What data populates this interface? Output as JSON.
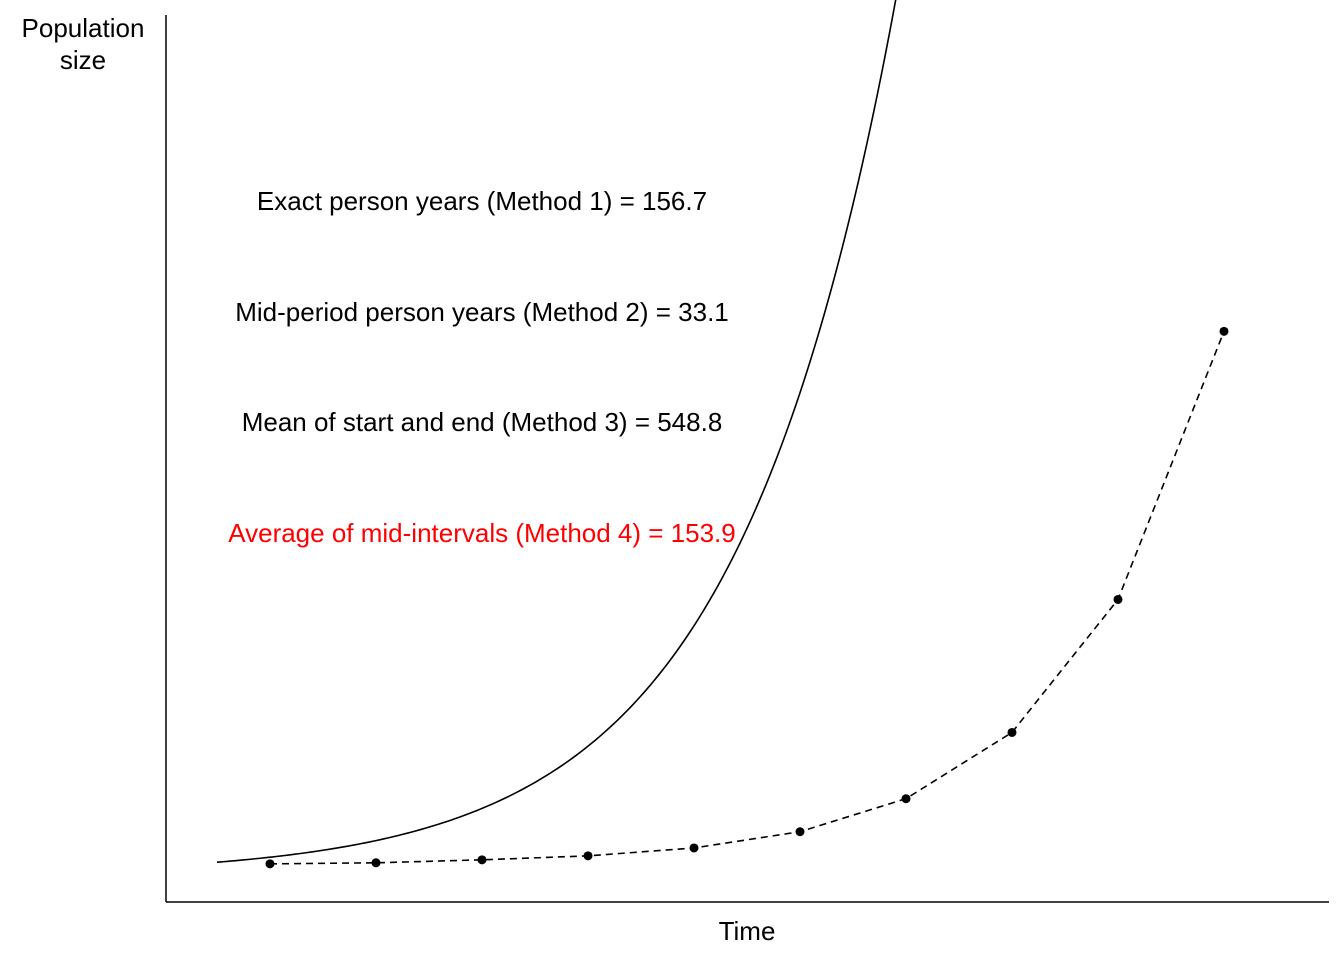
{
  "chart_data": {
    "type": "line",
    "ylabel_lines": [
      "Population",
      "size"
    ],
    "xlabel": "Time",
    "x_range": [
      -0.5,
      10.0
    ],
    "y_range": [
      0,
      1.0
    ],
    "series": [
      {
        "style": "solid",
        "color": "#000000",
        "curve": {
          "form": "exponential",
          "x_start": -0.5,
          "x_end": 10.0,
          "y_at_start": 0.0155,
          "growth_rate": 0.66
        }
      },
      {
        "style": "dashed",
        "color": "#000000",
        "x": [
          0,
          1,
          2,
          3,
          4,
          5,
          6,
          7,
          8,
          9
        ],
        "y": [
          0.0135,
          0.0148,
          0.0184,
          0.0232,
          0.0328,
          0.0525,
          0.0925,
          0.1728,
          0.334,
          0.659
        ]
      }
    ],
    "points": {
      "x": [
        0,
        1,
        2,
        3,
        4,
        5,
        6,
        7,
        8,
        9
      ],
      "y": [
        0.0135,
        0.0148,
        0.0184,
        0.0232,
        0.0328,
        0.0525,
        0.0925,
        0.1728,
        0.334,
        0.659
      ]
    },
    "annotations": [
      {
        "text": "Exact person years (Method 1) = 156.7",
        "color": "#000000"
      },
      {
        "text": "Mid-period person years (Method 2) = 33.1",
        "color": "#000000"
      },
      {
        "text": "Mean of start and end (Method 3) = 548.8",
        "color": "#000000"
      },
      {
        "text": "Average of mid-intervals (Method 4) = 153.9",
        "color": "#ff0000"
      }
    ]
  }
}
